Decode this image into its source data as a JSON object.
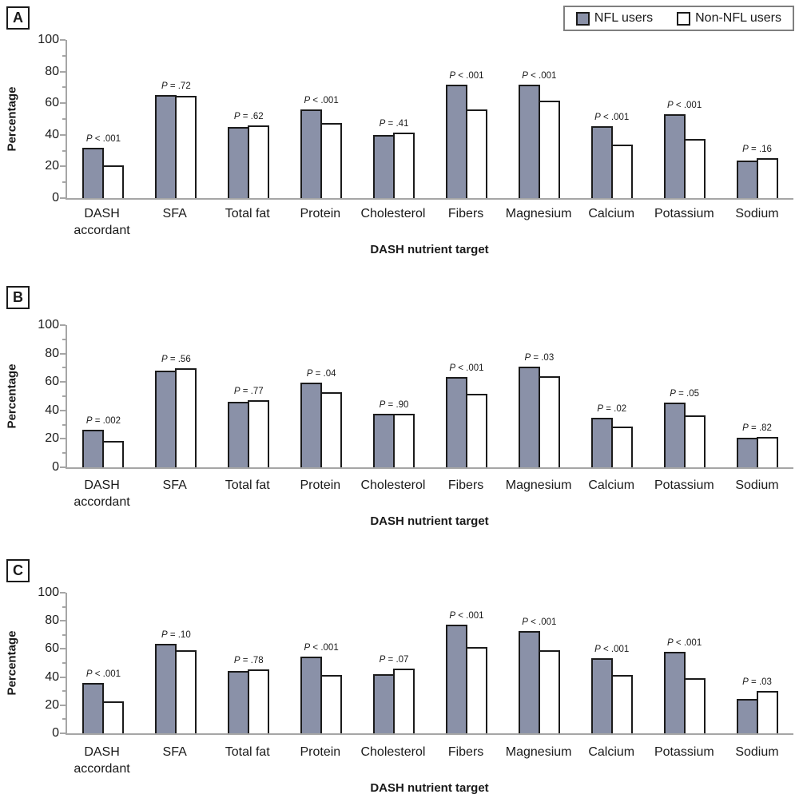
{
  "axis": {
    "ylabel": "Percentage",
    "xlabel": "DASH nutrient target",
    "ylim": [
      0,
      100
    ],
    "yticks_major": [
      0,
      20,
      40,
      60,
      80,
      100
    ],
    "yticks_minor": [
      10,
      30,
      50,
      70,
      90
    ],
    "grid": false
  },
  "legend": {
    "position": "top-right",
    "items": [
      {
        "label": "NFL users",
        "swatch": "filled"
      },
      {
        "label": "Non-NFL users",
        "swatch": "hollow"
      }
    ]
  },
  "colors": {
    "nfl_fill": "#8A91A8",
    "non_nfl_fill": "#FFFFFF",
    "bar_border": "#1B1B1B",
    "axis_line": "#A6A6A6",
    "text": "#1A1A1A"
  },
  "chart_data": [
    {
      "panel": "A",
      "type": "bar",
      "title": "",
      "xlabel": "DASH nutrient target",
      "ylabel": "Percentage",
      "ylim": [
        0,
        100
      ],
      "legend_position": "top-right",
      "categories": [
        "DASH accordant",
        "SFA",
        "Total fat",
        "Protein",
        "Cholesterol",
        "Fibers",
        "Magnesium",
        "Calcium",
        "Potassium",
        "Sodium"
      ],
      "series": [
        {
          "name": "NFL users",
          "values": [
            32,
            65,
            45,
            56,
            40,
            71.5,
            71.5,
            45.5,
            53,
            23.5
          ]
        },
        {
          "name": "Non-NFL users",
          "values": [
            20.5,
            64.5,
            46,
            47.5,
            41.5,
            56,
            61.5,
            34,
            37.5,
            25.5
          ]
        }
      ],
      "p_values": [
        "P < .001",
        "P = .72",
        "P = .62",
        "P < .001",
        "P = .41",
        "P < .001",
        "P < .001",
        "P < .001",
        "P < .001",
        "P = .16"
      ]
    },
    {
      "panel": "B",
      "type": "bar",
      "title": "",
      "xlabel": "DASH nutrient target",
      "ylabel": "Percentage",
      "ylim": [
        0,
        100
      ],
      "categories": [
        "DASH accordant",
        "SFA",
        "Total fat",
        "Protein",
        "Cholesterol",
        "Fibers",
        "Magnesium",
        "Calcium",
        "Potassium",
        "Sodium"
      ],
      "series": [
        {
          "name": "NFL users",
          "values": [
            26.5,
            68,
            46,
            59.5,
            37.5,
            63.5,
            71,
            35,
            45.5,
            21
          ]
        },
        {
          "name": "Non-NFL users",
          "values": [
            18.5,
            69.5,
            47,
            53,
            37.5,
            51.5,
            64,
            28.5,
            36.5,
            21.5
          ]
        }
      ],
      "p_values": [
        "P = .002",
        "P = .56",
        "P = .77",
        "P = .04",
        "P = .90",
        "P < .001",
        "P = .03",
        "P = .02",
        "P = .05",
        "P = .82"
      ]
    },
    {
      "panel": "C",
      "type": "bar",
      "title": "",
      "xlabel": "DASH nutrient target",
      "ylabel": "Percentage",
      "ylim": [
        0,
        100
      ],
      "categories": [
        "DASH accordant",
        "SFA",
        "Total fat",
        "Protein",
        "Cholesterol",
        "Fibers",
        "Magnesium",
        "Calcium",
        "Potassium",
        "Sodium"
      ],
      "series": [
        {
          "name": "NFL users",
          "values": [
            36,
            63.5,
            44.5,
            54.5,
            42,
            77.5,
            73,
            53.5,
            58,
            24.5
          ]
        },
        {
          "name": "Non-NFL users",
          "values": [
            23,
            59,
            45.5,
            41.5,
            46,
            61.5,
            59,
            41.5,
            39,
            30
          ]
        }
      ],
      "p_values": [
        "P < .001",
        "P = .10",
        "P = .78",
        "P < .001",
        "P = .07",
        "P < .001",
        "P < .001",
        "P < .001",
        "P < .001",
        "P = .03"
      ]
    }
  ]
}
